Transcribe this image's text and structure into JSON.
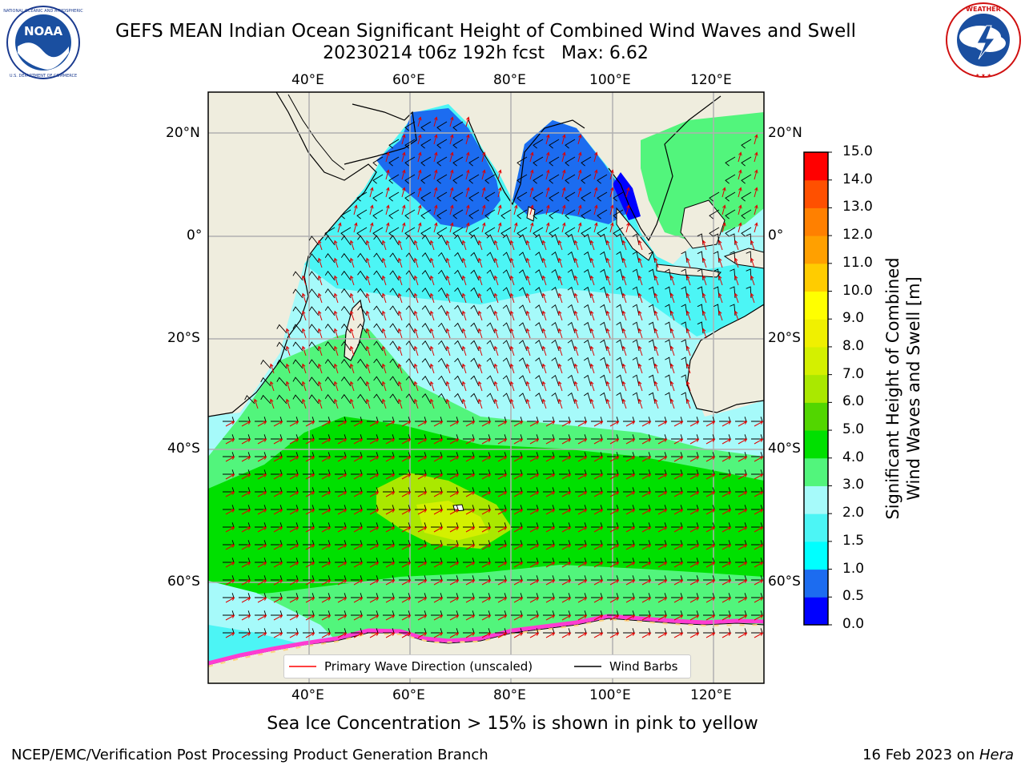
{
  "title": {
    "line1": "GEFS MEAN Indian Ocean Significant Height of Combined Wind Waves and Swell",
    "line2": "20230214 t06z 192h fcst   Max: 6.62"
  },
  "logos": {
    "left": {
      "name": "noaa-logo",
      "text": "NOAA",
      "ring_text": "NATIONAL OCEANIC AND ATMOSPHERIC ADMINISTRATION · U.S. DEPARTMENT OF COMMERCE"
    },
    "right": {
      "name": "nws-logo",
      "ring_text": "NATIONAL WEATHER SERVICE"
    }
  },
  "map": {
    "lon_ticks_top": [
      "40°E",
      "60°E",
      "80°E",
      "100°E",
      "120°E"
    ],
    "lon_ticks_bottom": [
      "40°E",
      "60°E",
      "80°E",
      "100°E",
      "120°E"
    ],
    "lat_ticks_left": [
      "20°N",
      "0°",
      "20°S",
      "40°S",
      "60°S"
    ],
    "lat_ticks_right": [
      "20°N",
      "0°",
      "20°S",
      "40°S",
      "60°S"
    ],
    "lon_values": [
      40,
      60,
      80,
      100,
      120
    ],
    "lat_values": [
      20,
      0,
      -20,
      -40,
      -60
    ],
    "land_color": "#efedde",
    "grid": true
  },
  "legend": {
    "items": [
      {
        "label": "Primary Wave Direction (unscaled)",
        "color": "#ff0000"
      },
      {
        "label": "Wind Barbs",
        "color": "#000000"
      }
    ]
  },
  "colorbar": {
    "title_line1": "Significant Height of Combined",
    "title_line2": "Wind Waves and Swell [m]",
    "levels": [
      "0.0",
      "0.5",
      "1.0",
      "1.5",
      "2.0",
      "3.0",
      "4.0",
      "5.0",
      "6.0",
      "7.0",
      "8.0",
      "9.0",
      "10.0",
      "11.0",
      "12.0",
      "13.0",
      "14.0",
      "15.0"
    ],
    "colors": [
      "#0000ff",
      "#1c6cf0",
      "#00ffff",
      "#4cf5f5",
      "#a6fafa",
      "#52f57c",
      "#00e000",
      "#52d600",
      "#aae800",
      "#d4f000",
      "#f0f000",
      "#ffff00",
      "#ffcc00",
      "#ffa000",
      "#ff8000",
      "#ff5000",
      "#ff0000"
    ]
  },
  "sea_ice_note": "Sea Ice Concentration > 15% is shown in pink to yellow",
  "footer": {
    "left": "NCEP/EMC/Verification Post Processing Product Generation Branch",
    "right_date": "16 Feb 2023 on ",
    "right_machine": "Hera"
  }
}
